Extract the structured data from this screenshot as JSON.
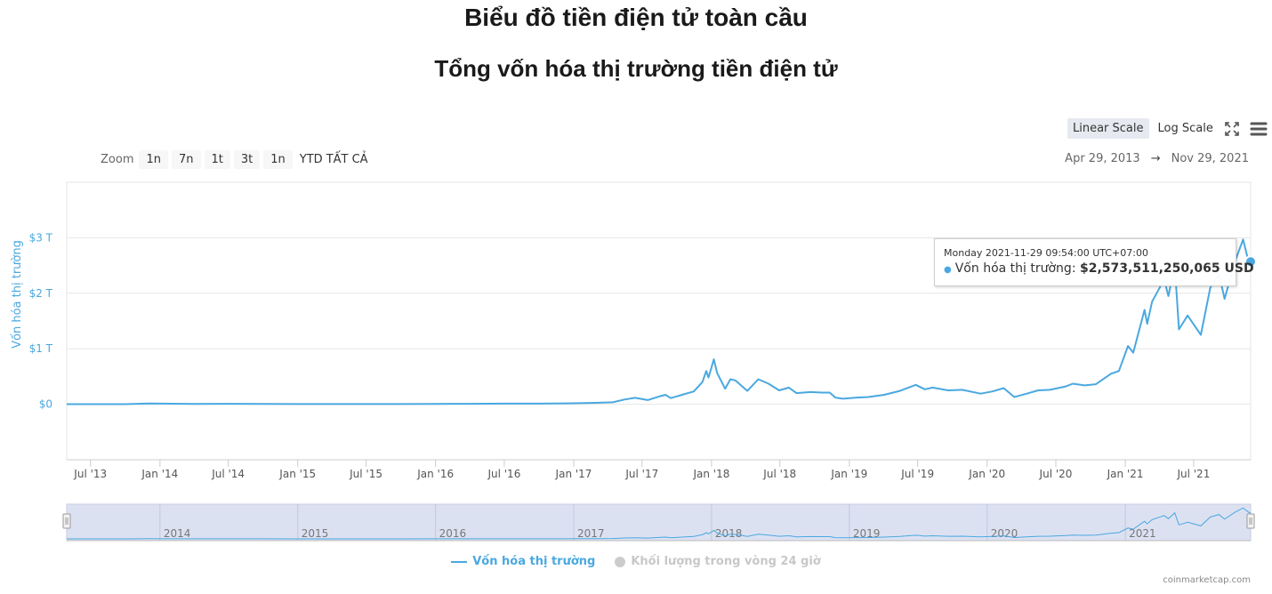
{
  "page": {
    "title": "Biểu đồ tiền điện tử toàn cầu",
    "credits": "coinmarketcap.com"
  },
  "toolbar": {
    "scale_buttons": [
      "Linear Scale",
      "Log Scale"
    ],
    "active_scale": "Linear Scale",
    "icons": [
      "fullscreen-icon",
      "menu-icon"
    ]
  },
  "range_selector": {
    "zoom_label": "Zoom",
    "buttons": [
      "1n",
      "7n",
      "1t",
      "3t",
      "1n",
      "YTD",
      "TẤT CẢ"
    ],
    "from_date": "Apr 29, 2013",
    "arrow": "→",
    "to_date": "Nov 29, 2021"
  },
  "tooltip": {
    "date": "Monday 2021-11-29 09:54:00 UTC+07:00",
    "series": "Vốn hóa thị trường",
    "value": "$2,573,511,250,065 USD"
  },
  "legend": {
    "items": [
      {
        "label": "Vốn hóa thị trường",
        "active": true
      },
      {
        "label": "Khối lượng trong vòng 24 giờ",
        "active": false
      }
    ]
  },
  "colors": {
    "series": "#4aa8e0",
    "grid": "#e6e6e6",
    "navigator_mask": "#d6dcf0"
  },
  "chart_data": {
    "type": "line",
    "title": "Tổng vốn hóa thị trường tiền điện tử",
    "ylabel": "Vốn hóa thị trường",
    "xlabel": "",
    "y_unit": "trillion USD",
    "ylim": [
      -1,
      4
    ],
    "y_ticks": [
      0,
      1,
      2,
      3
    ],
    "y_tick_labels": [
      "$0",
      "$1 T",
      "$2 T",
      "$3 T"
    ],
    "x_range": [
      "2013-04-29",
      "2021-11-29"
    ],
    "x_tick_labels": [
      "Jul '13",
      "Jan '14",
      "Jul '14",
      "Jan '15",
      "Jul '15",
      "Jan '16",
      "Jul '16",
      "Jan '17",
      "Jul '17",
      "Jan '18",
      "Jul '18",
      "Jan '19",
      "Jul '19",
      "Jan '20",
      "Jul '20",
      "Jan '21",
      "Jul '21"
    ],
    "x_tick_dates": [
      "2013-07-01",
      "2014-01-01",
      "2014-07-01",
      "2015-01-01",
      "2015-07-01",
      "2016-01-01",
      "2016-07-01",
      "2017-01-01",
      "2017-07-01",
      "2018-01-01",
      "2018-07-01",
      "2019-01-01",
      "2019-07-01",
      "2020-01-01",
      "2020-07-01",
      "2021-01-01",
      "2021-07-01"
    ],
    "navigator_labels": [
      "2014",
      "2015",
      "2016",
      "2017",
      "2018",
      "2019",
      "2020",
      "2021"
    ],
    "navigator_dates": [
      "2014-01-01",
      "2015-01-01",
      "2016-01-01",
      "2017-01-01",
      "2018-01-01",
      "2019-01-01",
      "2020-01-01",
      "2021-01-01"
    ],
    "grid": true,
    "legend_position": "bottom-center",
    "series": [
      {
        "name": "Vốn hóa thị trường",
        "points": [
          [
            "2013-04-29",
            0.0015
          ],
          [
            "2013-07-01",
            0.001
          ],
          [
            "2013-10-01",
            0.002
          ],
          [
            "2013-12-04",
            0.013
          ],
          [
            "2014-01-01",
            0.011
          ],
          [
            "2014-04-01",
            0.006
          ],
          [
            "2014-07-01",
            0.008
          ],
          [
            "2014-10-01",
            0.005
          ],
          [
            "2015-01-01",
            0.004
          ],
          [
            "2015-04-01",
            0.004
          ],
          [
            "2015-07-01",
            0.004
          ],
          [
            "2015-10-01",
            0.004
          ],
          [
            "2016-01-01",
            0.007
          ],
          [
            "2016-04-01",
            0.008
          ],
          [
            "2016-07-01",
            0.011
          ],
          [
            "2016-10-01",
            0.012
          ],
          [
            "2017-01-01",
            0.018
          ],
          [
            "2017-03-01",
            0.025
          ],
          [
            "2017-04-15",
            0.035
          ],
          [
            "2017-05-15",
            0.085
          ],
          [
            "2017-06-12",
            0.115
          ],
          [
            "2017-07-16",
            0.075
          ],
          [
            "2017-08-15",
            0.14
          ],
          [
            "2017-09-01",
            0.17
          ],
          [
            "2017-09-15",
            0.11
          ],
          [
            "2017-10-15",
            0.17
          ],
          [
            "2017-11-15",
            0.23
          ],
          [
            "2017-12-08",
            0.4
          ],
          [
            "2017-12-18",
            0.6
          ],
          [
            "2017-12-24",
            0.48
          ],
          [
            "2018-01-07",
            0.81
          ],
          [
            "2018-01-16",
            0.56
          ],
          [
            "2018-02-06",
            0.28
          ],
          [
            "2018-02-20",
            0.45
          ],
          [
            "2018-03-05",
            0.43
          ],
          [
            "2018-04-06",
            0.24
          ],
          [
            "2018-05-05",
            0.45
          ],
          [
            "2018-06-01",
            0.37
          ],
          [
            "2018-06-29",
            0.25
          ],
          [
            "2018-07-25",
            0.3
          ],
          [
            "2018-08-14",
            0.2
          ],
          [
            "2018-09-20",
            0.22
          ],
          [
            "2018-10-20",
            0.21
          ],
          [
            "2018-11-10",
            0.21
          ],
          [
            "2018-11-25",
            0.12
          ],
          [
            "2018-12-15",
            0.1
          ],
          [
            "2019-01-20",
            0.12
          ],
          [
            "2019-02-20",
            0.13
          ],
          [
            "2019-04-03",
            0.17
          ],
          [
            "2019-05-15",
            0.24
          ],
          [
            "2019-06-26",
            0.35
          ],
          [
            "2019-07-20",
            0.27
          ],
          [
            "2019-08-10",
            0.3
          ],
          [
            "2019-09-20",
            0.25
          ],
          [
            "2019-10-27",
            0.26
          ],
          [
            "2019-12-15",
            0.19
          ],
          [
            "2020-01-15",
            0.23
          ],
          [
            "2020-02-14",
            0.29
          ],
          [
            "2020-03-13",
            0.13
          ],
          [
            "2020-04-15",
            0.19
          ],
          [
            "2020-05-15",
            0.25
          ],
          [
            "2020-06-15",
            0.26
          ],
          [
            "2020-07-27",
            0.32
          ],
          [
            "2020-08-15",
            0.37
          ],
          [
            "2020-09-15",
            0.34
          ],
          [
            "2020-10-15",
            0.36
          ],
          [
            "2020-11-24",
            0.55
          ],
          [
            "2020-12-15",
            0.6
          ],
          [
            "2021-01-08",
            1.05
          ],
          [
            "2021-01-22",
            0.93
          ],
          [
            "2021-02-21",
            1.7
          ],
          [
            "2021-02-28",
            1.45
          ],
          [
            "2021-03-13",
            1.85
          ],
          [
            "2021-04-14",
            2.25
          ],
          [
            "2021-04-25",
            1.95
          ],
          [
            "2021-05-12",
            2.5
          ],
          [
            "2021-05-23",
            1.35
          ],
          [
            "2021-06-15",
            1.6
          ],
          [
            "2021-07-20",
            1.25
          ],
          [
            "2021-08-14",
            2.1
          ],
          [
            "2021-09-06",
            2.35
          ],
          [
            "2021-09-21",
            1.9
          ],
          [
            "2021-10-20",
            2.6
          ],
          [
            "2021-11-09",
            2.97
          ],
          [
            "2021-11-26",
            2.5
          ],
          [
            "2021-11-29",
            2.57
          ]
        ]
      }
    ]
  }
}
